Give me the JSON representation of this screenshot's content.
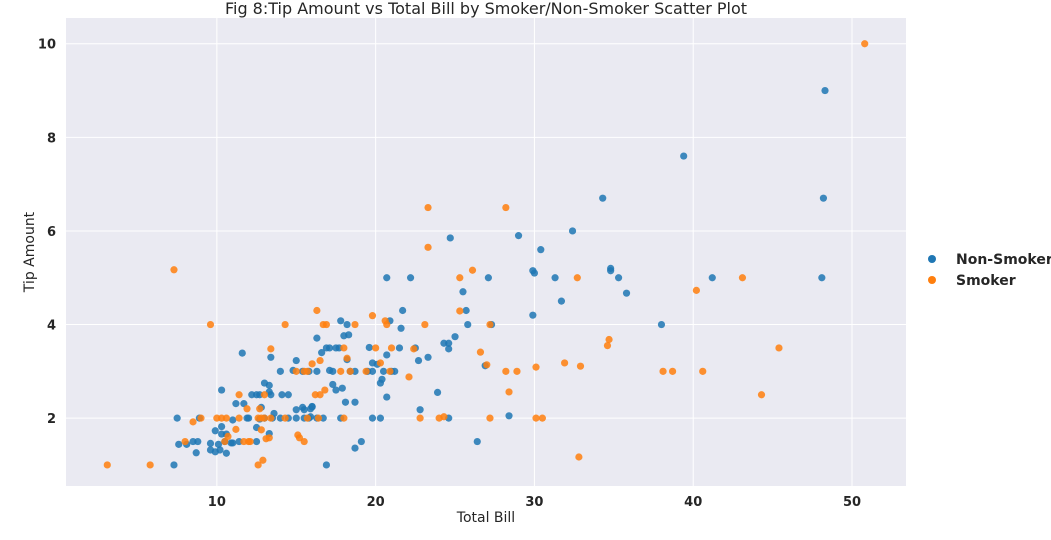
{
  "chart_data": {
    "type": "scatter",
    "title": "Fig 8:Tip Amount vs Total Bill by Smoker/Non-Smoker Scatter Plot",
    "xlabel": "Total Bill",
    "ylabel": "Tip Amount",
    "xlim": [
      0.5,
      53.4
    ],
    "ylim": [
      0.55,
      10.55
    ],
    "xticks": [
      10,
      20,
      30,
      40,
      50
    ],
    "yticks": [
      2,
      4,
      6,
      8,
      10
    ],
    "grid": true,
    "legend_position": "right",
    "colors": {
      "background": "#eaeaf2",
      "grid": "#ffffff"
    },
    "series": [
      {
        "name": "Non-Smoker",
        "color": "#1f77b4",
        "points": [
          [
            48.3,
            9.0
          ],
          [
            48.2,
            6.7
          ],
          [
            48.1,
            5.0
          ],
          [
            39.4,
            7.6
          ],
          [
            34.3,
            6.7
          ],
          [
            32.4,
            6.0
          ],
          [
            30.4,
            5.6
          ],
          [
            29.0,
            5.9
          ],
          [
            24.7,
            5.85
          ],
          [
            41.2,
            5.0
          ],
          [
            35.3,
            5.0
          ],
          [
            34.8,
            5.2
          ],
          [
            34.8,
            5.15
          ],
          [
            35.8,
            4.67
          ],
          [
            31.3,
            5.0
          ],
          [
            30.0,
            5.1
          ],
          [
            29.9,
            5.15
          ],
          [
            31.7,
            4.5
          ],
          [
            27.1,
            5.0
          ],
          [
            20.7,
            5.0
          ],
          [
            22.2,
            5.0
          ],
          [
            29.9,
            4.2
          ],
          [
            25.5,
            4.7
          ],
          [
            25.7,
            4.3
          ],
          [
            25.8,
            4.0
          ],
          [
            38.0,
            4.0
          ],
          [
            27.3,
            4.0
          ],
          [
            21.7,
            4.3
          ],
          [
            20.9,
            4.08
          ],
          [
            17.8,
            4.08
          ],
          [
            18.2,
            4.0
          ],
          [
            21.6,
            3.92
          ],
          [
            25.0,
            3.74
          ],
          [
            24.3,
            3.6
          ],
          [
            24.6,
            3.6
          ],
          [
            23.3,
            3.3
          ],
          [
            24.6,
            3.48
          ],
          [
            18.3,
            3.78
          ],
          [
            18.0,
            3.76
          ],
          [
            16.3,
            3.71
          ],
          [
            17.1,
            3.5
          ],
          [
            17.5,
            3.5
          ],
          [
            17.7,
            3.5
          ],
          [
            16.9,
            3.5
          ],
          [
            19.6,
            3.51
          ],
          [
            20.1,
            3.15
          ],
          [
            20.5,
            3.0
          ],
          [
            21.0,
            3.0
          ],
          [
            21.5,
            3.5
          ],
          [
            22.5,
            3.5
          ],
          [
            22.7,
            3.23
          ],
          [
            20.7,
            3.35
          ],
          [
            19.8,
            3.18
          ],
          [
            15.0,
            3.23
          ],
          [
            13.4,
            3.3
          ],
          [
            11.6,
            3.39
          ],
          [
            17.3,
            3.0
          ],
          [
            17.1,
            3.02
          ],
          [
            16.6,
            3.4
          ],
          [
            18.2,
            3.25
          ],
          [
            18.4,
            3.0
          ],
          [
            18.7,
            3.0
          ],
          [
            19.5,
            3.0
          ],
          [
            19.8,
            3.0
          ],
          [
            21.2,
            3.0
          ],
          [
            14.0,
            3.0
          ],
          [
            14.8,
            3.02
          ],
          [
            15.4,
            3.0
          ],
          [
            15.8,
            3.0
          ],
          [
            16.3,
            3.0
          ],
          [
            13.3,
            2.7
          ],
          [
            13.0,
            2.75
          ],
          [
            17.3,
            2.72
          ],
          [
            17.5,
            2.6
          ],
          [
            17.9,
            2.64
          ],
          [
            18.1,
            2.34
          ],
          [
            18.7,
            2.34
          ],
          [
            20.3,
            2.75
          ],
          [
            20.4,
            2.83
          ],
          [
            23.9,
            2.55
          ],
          [
            26.9,
            3.12
          ],
          [
            20.7,
            2.45
          ],
          [
            22.8,
            2.18
          ],
          [
            14.5,
            2.5
          ],
          [
            14.1,
            2.5
          ],
          [
            12.5,
            2.5
          ],
          [
            12.7,
            2.5
          ],
          [
            11.9,
            2.0
          ],
          [
            12.2,
            2.5
          ],
          [
            13.4,
            2.5
          ],
          [
            13.3,
            2.56
          ],
          [
            10.3,
            2.6
          ],
          [
            9.9,
            1.73
          ],
          [
            10.3,
            1.66
          ],
          [
            10.6,
            1.66
          ],
          [
            9.6,
            1.46
          ],
          [
            10.1,
            1.44
          ],
          [
            10.5,
            1.5
          ],
          [
            10.9,
            1.47
          ],
          [
            11.0,
            1.47
          ],
          [
            11.4,
            1.5
          ],
          [
            11.7,
            2.31
          ],
          [
            12.0,
            2.0
          ],
          [
            12.5,
            1.8
          ],
          [
            12.7,
            1.98
          ],
          [
            13.3,
            1.67
          ],
          [
            11.0,
            1.96
          ],
          [
            10.3,
            1.82
          ],
          [
            10.2,
            1.32
          ],
          [
            9.6,
            1.32
          ],
          [
            9.9,
            1.28
          ],
          [
            10.6,
            1.25
          ],
          [
            8.7,
            1.26
          ],
          [
            8.5,
            1.5
          ],
          [
            8.8,
            1.5
          ],
          [
            8.9,
            2.0
          ],
          [
            8.1,
            1.44
          ],
          [
            7.6,
            1.44
          ],
          [
            7.5,
            2.0
          ],
          [
            7.3,
            1.0
          ],
          [
            13.5,
            2.0
          ],
          [
            14.0,
            2.0
          ],
          [
            14.5,
            2.0
          ],
          [
            15.0,
            2.0
          ],
          [
            15.5,
            2.0
          ],
          [
            15.9,
            2.03
          ],
          [
            16.0,
            2.24
          ],
          [
            16.3,
            2.0
          ],
          [
            16.7,
            2.0
          ],
          [
            15.5,
            2.18
          ],
          [
            15.0,
            2.18
          ],
          [
            17.8,
            2.0
          ],
          [
            19.8,
            2.0
          ],
          [
            20.3,
            2.0
          ],
          [
            24.6,
            2.0
          ],
          [
            28.4,
            2.05
          ],
          [
            26.4,
            1.5
          ],
          [
            19.1,
            1.5
          ],
          [
            18.7,
            1.36
          ],
          [
            16.9,
            1.0
          ],
          [
            15.9,
            2.2
          ],
          [
            15.4,
            2.23
          ],
          [
            16.0,
            2.25
          ],
          [
            15.8,
            2.0
          ],
          [
            12.5,
            1.5
          ],
          [
            11.2,
            2.31
          ],
          [
            12.8,
            2.23
          ],
          [
            13.6,
            2.1
          ],
          [
            13.0,
            2.0
          ]
        ]
      },
      {
        "name": "Smoker",
        "color": "#ff7f0e",
        "points": [
          [
            50.8,
            10.0
          ],
          [
            23.3,
            6.5
          ],
          [
            28.2,
            6.5
          ],
          [
            23.3,
            5.65
          ],
          [
            7.3,
            5.17
          ],
          [
            25.3,
            5.0
          ],
          [
            26.1,
            5.16
          ],
          [
            32.7,
            5.0
          ],
          [
            43.1,
            5.0
          ],
          [
            40.2,
            4.73
          ],
          [
            16.3,
            4.3
          ],
          [
            16.7,
            4.0
          ],
          [
            16.9,
            4.0
          ],
          [
            18.7,
            4.0
          ],
          [
            9.6,
            4.0
          ],
          [
            14.3,
            4.0
          ],
          [
            19.8,
            4.19
          ],
          [
            20.7,
            4.0
          ],
          [
            20.6,
            4.08
          ],
          [
            23.1,
            4.0
          ],
          [
            25.3,
            4.29
          ],
          [
            27.2,
            4.0
          ],
          [
            34.6,
            3.55
          ],
          [
            34.7,
            3.68
          ],
          [
            45.4,
            3.5
          ],
          [
            26.6,
            3.41
          ],
          [
            31.9,
            3.18
          ],
          [
            32.9,
            3.11
          ],
          [
            30.1,
            3.09
          ],
          [
            38.1,
            3.0
          ],
          [
            38.7,
            3.0
          ],
          [
            40.6,
            3.0
          ],
          [
            28.2,
            3.0
          ],
          [
            28.9,
            3.0
          ],
          [
            27.0,
            3.14
          ],
          [
            22.4,
            3.48
          ],
          [
            21.0,
            3.5
          ],
          [
            20.3,
            3.18
          ],
          [
            20.0,
            3.5
          ],
          [
            19.4,
            3.0
          ],
          [
            18.4,
            3.0
          ],
          [
            18.0,
            3.5
          ],
          [
            18.2,
            3.28
          ],
          [
            17.8,
            3.0
          ],
          [
            16.5,
            3.23
          ],
          [
            16.0,
            3.16
          ],
          [
            15.5,
            3.0
          ],
          [
            15.7,
            3.0
          ],
          [
            15.0,
            3.0
          ],
          [
            13.4,
            3.48
          ],
          [
            22.1,
            2.88
          ],
          [
            20.9,
            3.0
          ],
          [
            28.4,
            2.56
          ],
          [
            44.3,
            2.5
          ],
          [
            11.4,
            2.5
          ],
          [
            13.0,
            2.5
          ],
          [
            16.2,
            2.5
          ],
          [
            16.5,
            2.5
          ],
          [
            16.8,
            2.6
          ],
          [
            24.3,
            2.03
          ],
          [
            24.0,
            2.0
          ],
          [
            22.8,
            2.0
          ],
          [
            27.2,
            2.0
          ],
          [
            30.1,
            2.0
          ],
          [
            30.5,
            2.0
          ],
          [
            18.0,
            2.0
          ],
          [
            16.4,
            2.0
          ],
          [
            15.7,
            2.0
          ],
          [
            14.3,
            2.0
          ],
          [
            13.0,
            2.0
          ],
          [
            13.4,
            2.0
          ],
          [
            12.8,
            2.0
          ],
          [
            12.6,
            2.0
          ],
          [
            11.4,
            2.0
          ],
          [
            10.6,
            2.0
          ],
          [
            10.0,
            2.0
          ],
          [
            10.3,
            2.0
          ],
          [
            9.0,
            2.0
          ],
          [
            8.5,
            1.92
          ],
          [
            11.2,
            1.76
          ],
          [
            11.9,
            2.2
          ],
          [
            12.7,
            2.2
          ],
          [
            12.8,
            1.75
          ],
          [
            13.3,
            1.58
          ],
          [
            15.1,
            1.64
          ],
          [
            15.5,
            1.5
          ],
          [
            15.2,
            1.58
          ],
          [
            12.0,
            1.5
          ],
          [
            11.7,
            1.5
          ],
          [
            10.7,
            1.61
          ],
          [
            10.5,
            1.5
          ],
          [
            8.0,
            1.5
          ],
          [
            12.9,
            1.1
          ],
          [
            12.6,
            1.0
          ],
          [
            5.8,
            1.0
          ],
          [
            3.1,
            1.0
          ],
          [
            32.8,
            1.17
          ],
          [
            12.1,
            1.5
          ],
          [
            13.1,
            1.56
          ]
        ]
      }
    ]
  }
}
